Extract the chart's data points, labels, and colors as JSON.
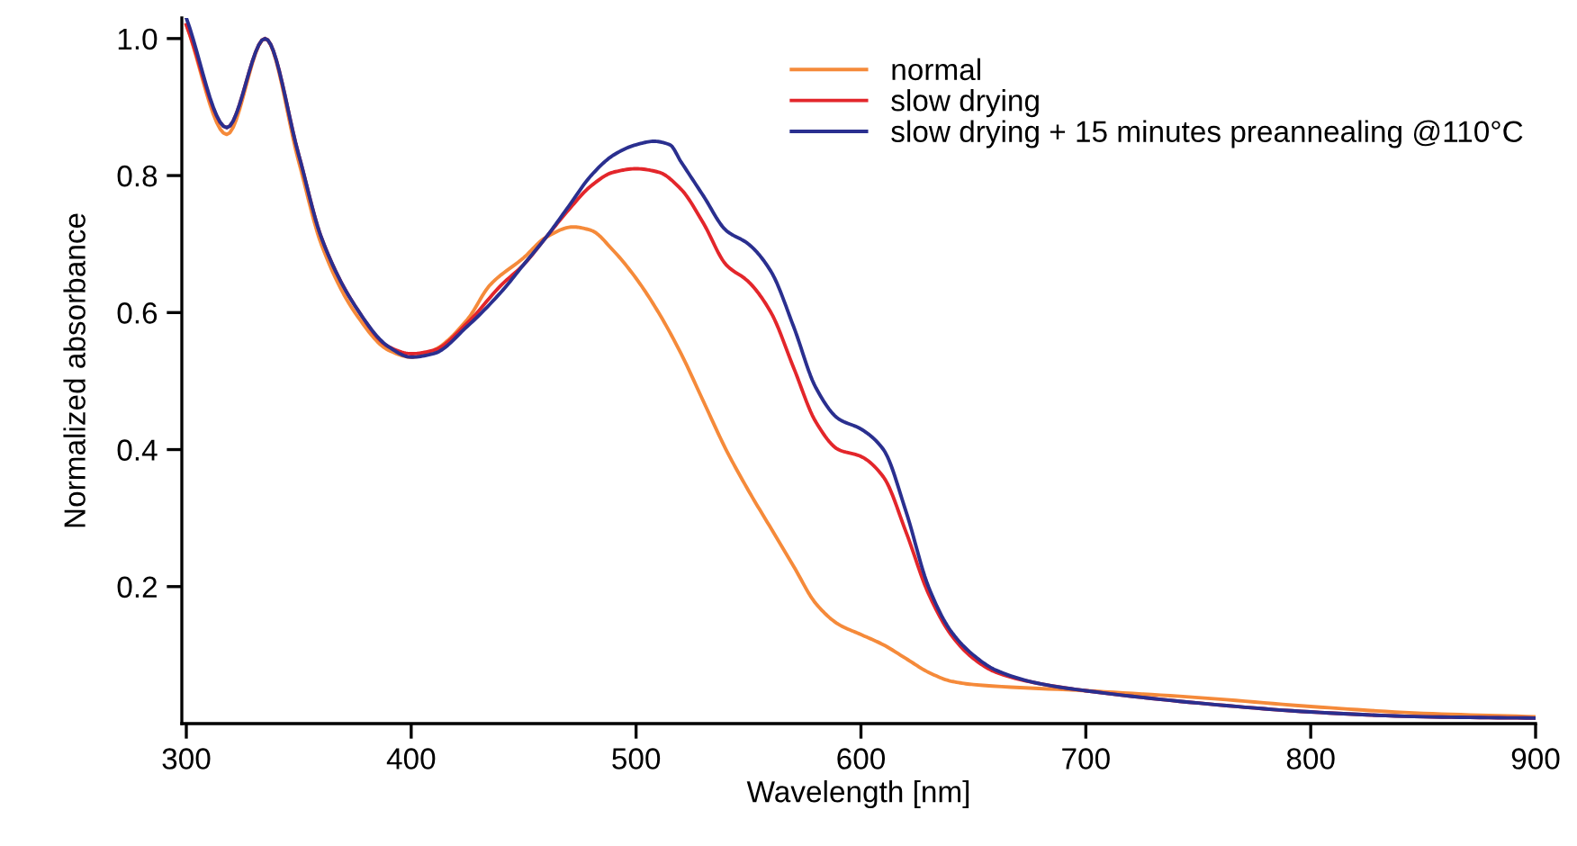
{
  "chart_data": {
    "type": "line",
    "xlabel": "Wavelength [nm]",
    "ylabel": "Normalized absorbance",
    "xlim": [
      298,
      900
    ],
    "ylim": [
      0,
      1.03
    ],
    "xticks": [
      300,
      400,
      500,
      600,
      700,
      800,
      900
    ],
    "yticks": [
      0.2,
      0.4,
      0.6,
      0.8,
      {
        "value": 1.0,
        "label": "1.0"
      }
    ],
    "grid": false,
    "legend": "top right",
    "marker": "none",
    "line_style": "solid",
    "series": [
      {
        "name": "normal",
        "color": "#f58a3a",
        "x": [
          300,
          318,
          335,
          350,
          360,
          375,
          390,
          400,
          410,
          425,
          435,
          450,
          460,
          472,
          480,
          490,
          500,
          510,
          520,
          530,
          540,
          550,
          560,
          570,
          580,
          590,
          600,
          610,
          620,
          630,
          640,
          650,
          700,
          750,
          800,
          850,
          900
        ],
        "values": [
          1.02,
          0.86,
          1.0,
          0.82,
          0.7,
          0.6,
          0.545,
          0.535,
          0.545,
          0.59,
          0.64,
          0.68,
          0.71,
          0.725,
          0.72,
          0.69,
          0.65,
          0.6,
          0.54,
          0.47,
          0.4,
          0.34,
          0.285,
          0.23,
          0.175,
          0.145,
          0.13,
          0.115,
          0.095,
          0.075,
          0.062,
          0.057,
          0.048,
          0.038,
          0.025,
          0.015,
          0.01
        ]
      },
      {
        "name": "slow drying",
        "color": "#e3262b",
        "x": [
          300,
          318,
          335,
          350,
          360,
          375,
          390,
          400,
          410,
          425,
          440,
          450,
          460,
          470,
          480,
          490,
          500,
          510,
          520,
          530,
          540,
          550,
          560,
          570,
          580,
          590,
          600,
          610,
          620,
          630,
          640,
          650,
          660,
          680,
          700,
          750,
          800,
          850,
          900
        ],
        "values": [
          1.02,
          0.87,
          1.0,
          0.83,
          0.71,
          0.61,
          0.55,
          0.54,
          0.545,
          0.585,
          0.64,
          0.67,
          0.71,
          0.75,
          0.785,
          0.805,
          0.81,
          0.805,
          0.78,
          0.73,
          0.67,
          0.645,
          0.6,
          0.52,
          0.44,
          0.4,
          0.39,
          0.36,
          0.28,
          0.19,
          0.13,
          0.095,
          0.075,
          0.058,
          0.048,
          0.03,
          0.017,
          0.01,
          0.008
        ]
      },
      {
        "name": "slow drying + 15 minutes preannealing @110°C",
        "color": "#2a2f8f",
        "x": [
          300,
          318,
          335,
          350,
          360,
          375,
          390,
          400,
          410,
          425,
          440,
          450,
          460,
          470,
          480,
          490,
          500,
          508,
          515,
          520,
          530,
          540,
          550,
          560,
          570,
          580,
          590,
          600,
          610,
          620,
          630,
          640,
          650,
          660,
          680,
          700,
          750,
          800,
          850,
          900
        ],
        "values": [
          1.03,
          0.87,
          1.0,
          0.83,
          0.71,
          0.61,
          0.55,
          0.535,
          0.54,
          0.58,
          0.63,
          0.67,
          0.71,
          0.755,
          0.8,
          0.83,
          0.845,
          0.85,
          0.845,
          0.82,
          0.77,
          0.72,
          0.7,
          0.66,
          0.58,
          0.49,
          0.445,
          0.43,
          0.4,
          0.31,
          0.2,
          0.135,
          0.1,
          0.078,
          0.058,
          0.048,
          0.03,
          0.017,
          0.01,
          0.008
        ]
      }
    ]
  }
}
